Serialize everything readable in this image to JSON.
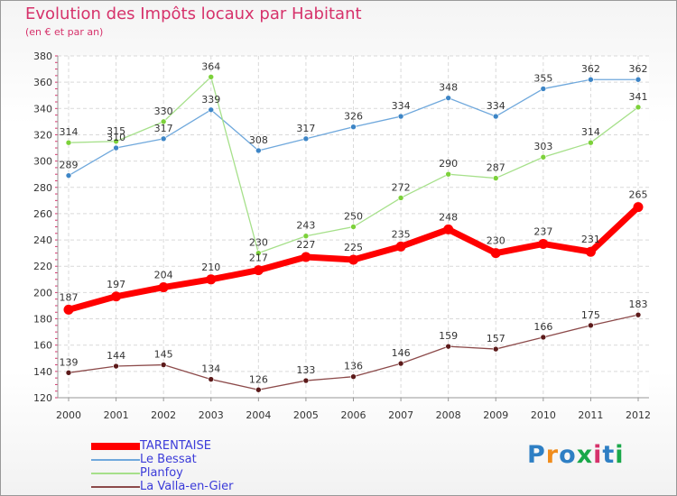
{
  "header": {
    "title": "Evolution des Impôts locaux par Habitant",
    "subtitle": "(en € et par an)"
  },
  "logo": {
    "text": "Proxiti",
    "letters": [
      {
        "ch": "P",
        "color": "#2e7fc4"
      },
      {
        "ch": "r",
        "color": "#f08c1c"
      },
      {
        "ch": "o",
        "color": "#2e7fc4"
      },
      {
        "ch": "x",
        "color": "#1aa84a"
      },
      {
        "ch": "i",
        "color": "#d6326b"
      },
      {
        "ch": "t",
        "color": "#2e7fc4"
      },
      {
        "ch": "i",
        "color": "#1aa84a"
      }
    ]
  },
  "chart_data": {
    "type": "line",
    "title": "Evolution des Impôts locaux par Habitant",
    "subtitle": "(en € et par an)",
    "x": [
      "2000",
      "2001",
      "2002",
      "2003",
      "2004",
      "2005",
      "2006",
      "2007",
      "2008",
      "2009",
      "2010",
      "2011",
      "2012"
    ],
    "ylim": [
      120,
      380
    ],
    "yticks": [
      120,
      140,
      160,
      180,
      200,
      220,
      240,
      260,
      280,
      300,
      320,
      340,
      360,
      380
    ],
    "grid": true,
    "legend_position": "bottom-left",
    "series": [
      {
        "name": "TARENTAISE",
        "color": "#ff0000",
        "marker_color": "#ff0000",
        "values": [
          187,
          197,
          204,
          210,
          217,
          227,
          225,
          235,
          248,
          230,
          237,
          231,
          265
        ]
      },
      {
        "name": "Le Bessat",
        "color": "#6fa8dc",
        "marker_color": "#3d85c6",
        "values": [
          289,
          310,
          317,
          339,
          308,
          317,
          326,
          334,
          348,
          334,
          355,
          362,
          362
        ]
      },
      {
        "name": "Planfoy",
        "color": "#a6e08a",
        "marker_color": "#7cd13a",
        "values": [
          314,
          315,
          330,
          364,
          230,
          243,
          250,
          272,
          290,
          287,
          303,
          314,
          341
        ]
      },
      {
        "name": "La Valla-en-Gier",
        "color": "#8c4a4a",
        "marker_color": "#5c1a1a",
        "values": [
          139,
          144,
          145,
          134,
          126,
          133,
          136,
          146,
          159,
          157,
          166,
          175,
          183
        ]
      }
    ]
  }
}
